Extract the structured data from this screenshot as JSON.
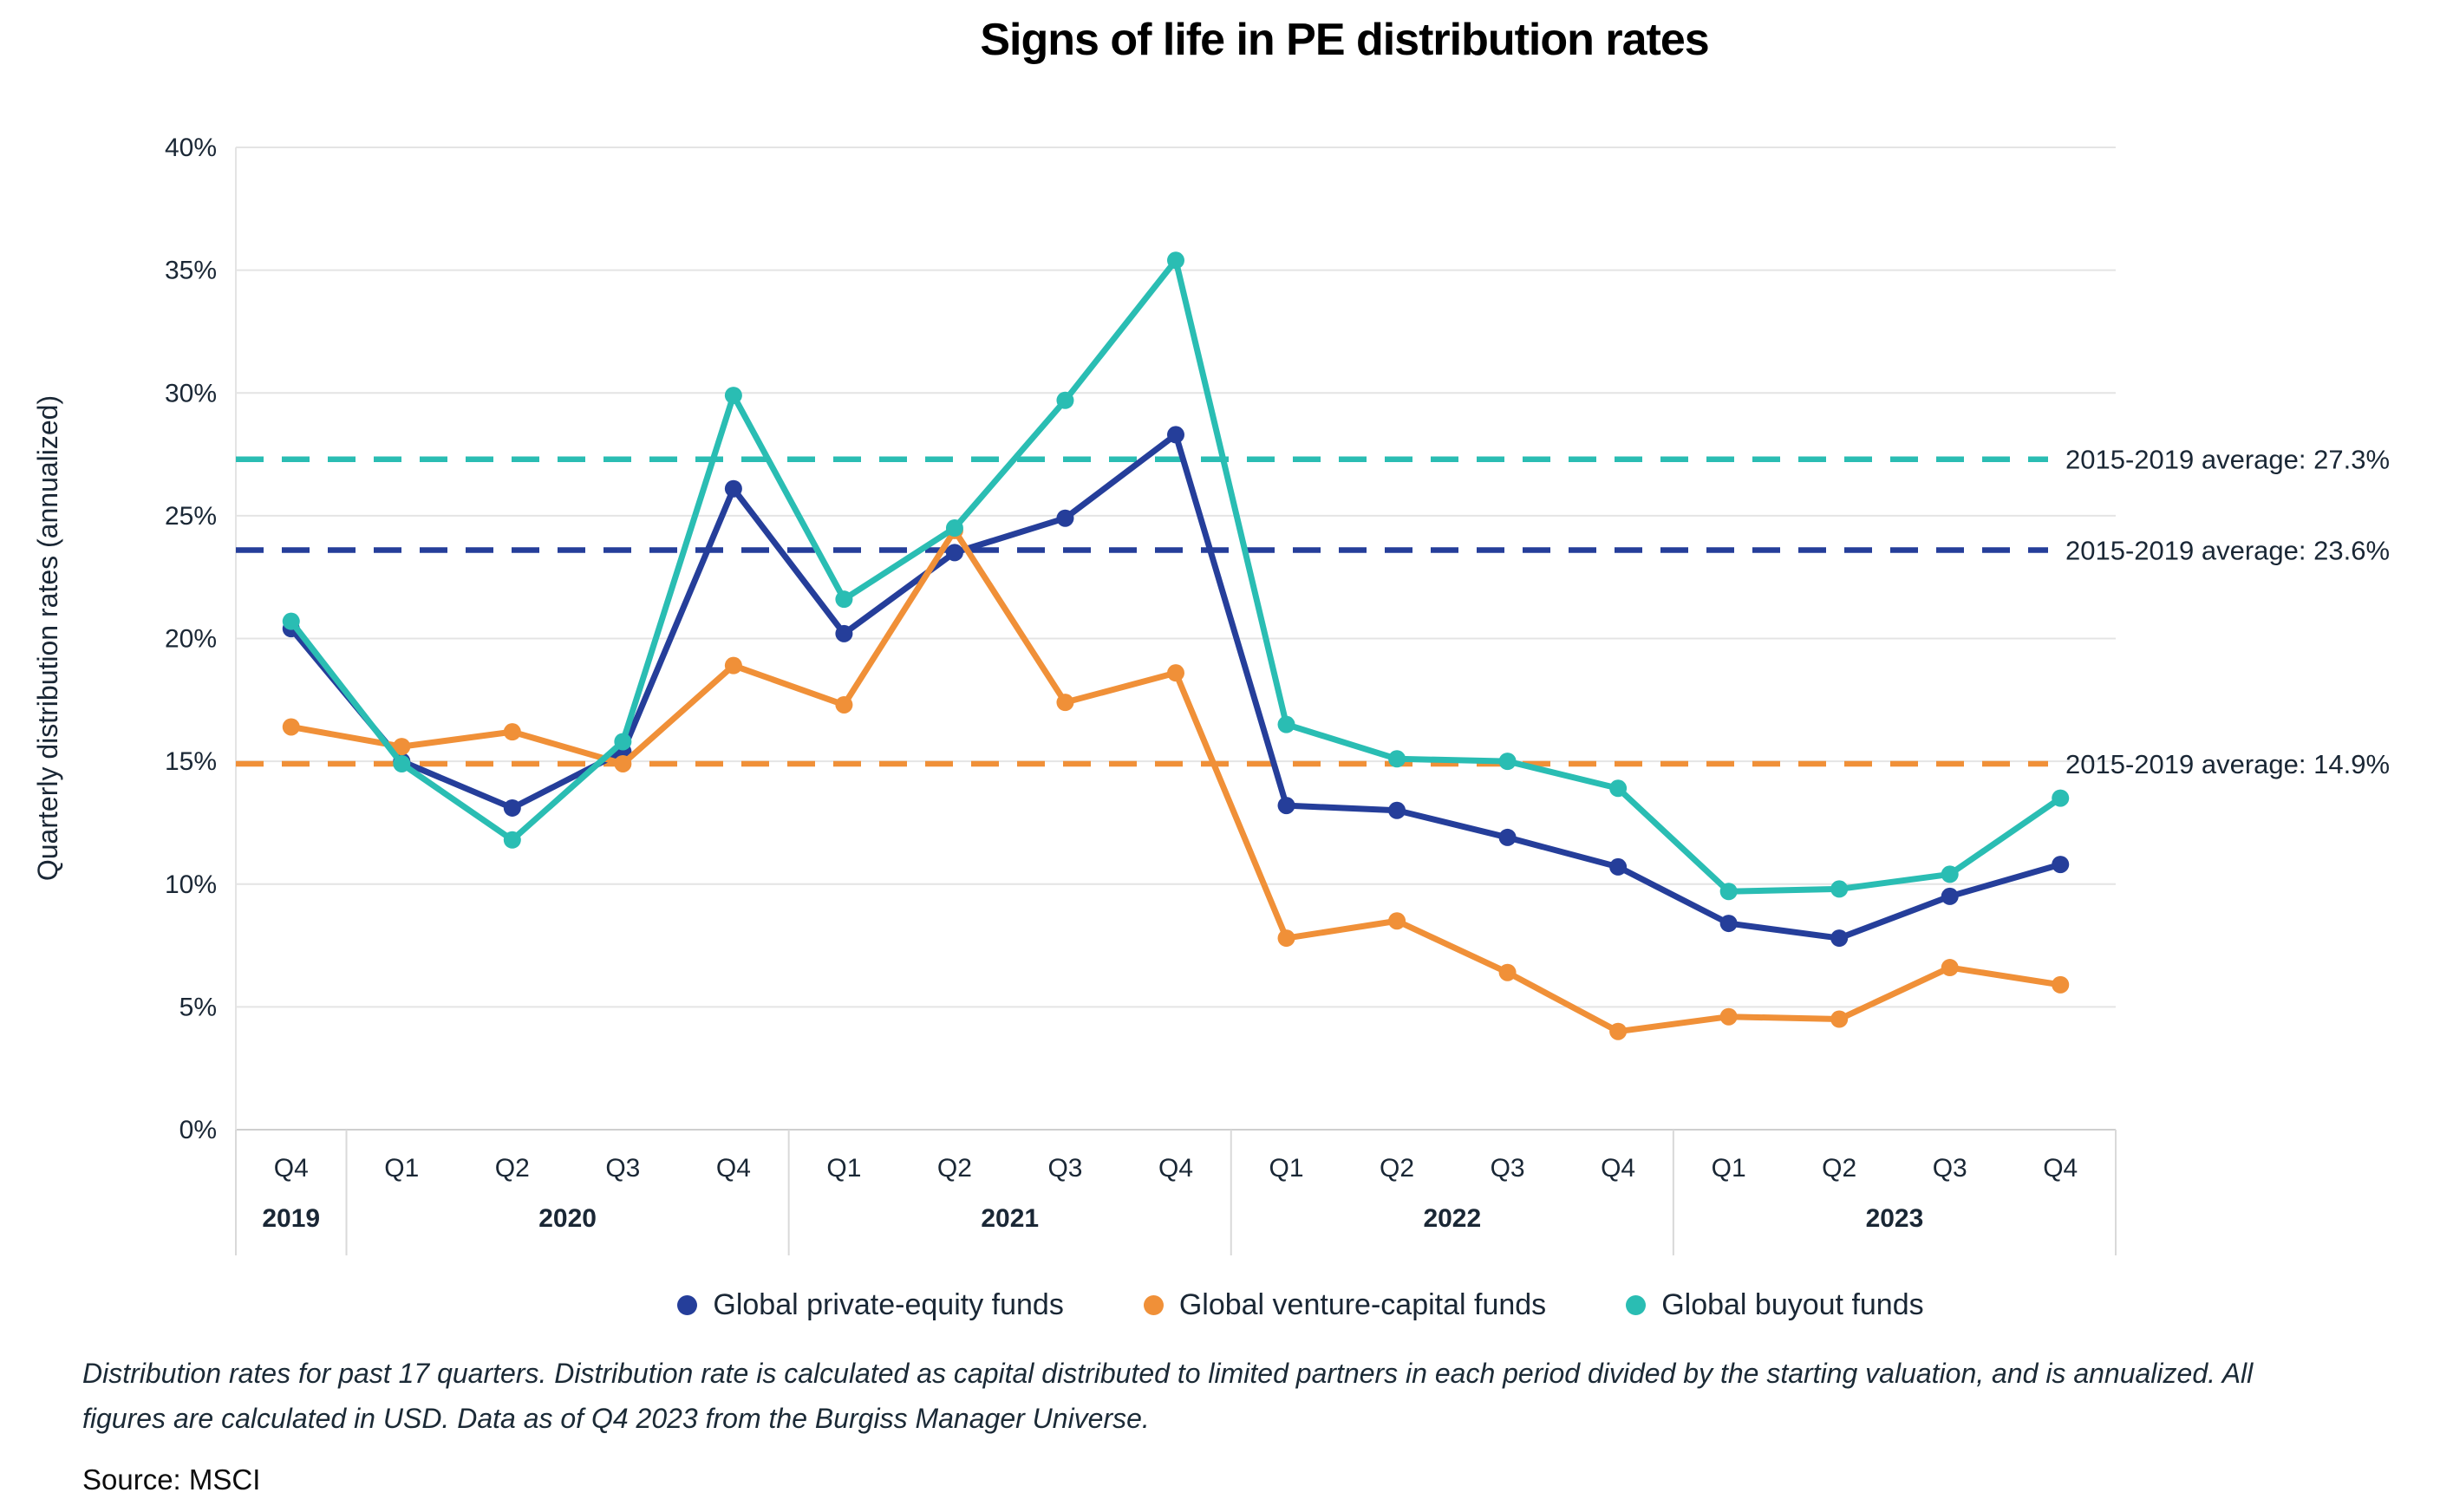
{
  "title": "Signs of life in PE distribution rates",
  "chart_data": {
    "type": "line",
    "title": "Signs of life in PE distribution rates",
    "xlabel": "",
    "ylabel": "Quarterly distribution rates (annualized)",
    "ylim": [
      0,
      40
    ],
    "y_tick_step": 5,
    "y_tick_labels": [
      "0%",
      "5%",
      "10%",
      "15%",
      "20%",
      "25%",
      "30%",
      "35%",
      "40%"
    ],
    "grid": true,
    "legend_position": "bottom",
    "categories": [
      "Q4 2019",
      "Q1 2020",
      "Q2 2020",
      "Q3 2020",
      "Q4 2020",
      "Q1 2021",
      "Q2 2021",
      "Q3 2021",
      "Q4 2021",
      "Q1 2022",
      "Q2 2022",
      "Q3 2022",
      "Q4 2022",
      "Q1 2023",
      "Q2 2023",
      "Q3 2023",
      "Q4 2023"
    ],
    "x_groups": [
      {
        "year": "2019",
        "quarters": [
          "Q4"
        ]
      },
      {
        "year": "2020",
        "quarters": [
          "Q1",
          "Q2",
          "Q3",
          "Q4"
        ]
      },
      {
        "year": "2021",
        "quarters": [
          "Q1",
          "Q2",
          "Q3",
          "Q4"
        ]
      },
      {
        "year": "2022",
        "quarters": [
          "Q1",
          "Q2",
          "Q3",
          "Q4"
        ]
      },
      {
        "year": "2023",
        "quarters": [
          "Q1",
          "Q2",
          "Q3",
          "Q4"
        ]
      }
    ],
    "series": [
      {
        "name": "Global private-equity funds",
        "color": "#253e9a",
        "values": [
          20.4,
          15.0,
          13.1,
          15.4,
          26.1,
          20.2,
          23.5,
          24.9,
          28.3,
          13.2,
          13.0,
          11.9,
          10.7,
          8.4,
          7.8,
          9.5,
          10.8
        ]
      },
      {
        "name": "Global venture-capital funds",
        "color": "#f09038",
        "values": [
          16.4,
          15.6,
          16.2,
          14.9,
          18.9,
          17.3,
          24.4,
          17.4,
          18.6,
          7.8,
          8.5,
          6.4,
          4.0,
          4.6,
          4.5,
          6.6,
          5.9
        ]
      },
      {
        "name": "Global buyout funds",
        "color": "#2abdb3",
        "values": [
          20.7,
          14.9,
          11.8,
          15.8,
          29.9,
          21.6,
          24.5,
          29.7,
          35.4,
          16.5,
          15.1,
          15.0,
          13.9,
          9.7,
          9.8,
          10.4,
          13.5
        ]
      }
    ],
    "average_lines": [
      {
        "label": "2015-2019 average: 27.3%",
        "value": 27.3,
        "color": "#2abdb3"
      },
      {
        "label": "2015-2019 average: 23.6%",
        "value": 23.6,
        "color": "#253e9a"
      },
      {
        "label": "2015-2019 average: 14.9%",
        "value": 14.9,
        "color": "#f09038"
      }
    ]
  },
  "footnote_line1": "Distribution rates for past 17 quarters. Distribution rate is calculated as capital distributed to limited partners in each period divided by the starting valuation, and is annualized. All",
  "footnote_line2": "figures are calculated in USD. Data as of Q4 2023 from the Burgiss Manager Universe.",
  "source": "Source: MSCI",
  "colors": {
    "grid": "#e4e4e4",
    "axis": "#cfcfcf",
    "separator": "#d9d9d9",
    "text": "#1a2735",
    "title": "#000000"
  }
}
